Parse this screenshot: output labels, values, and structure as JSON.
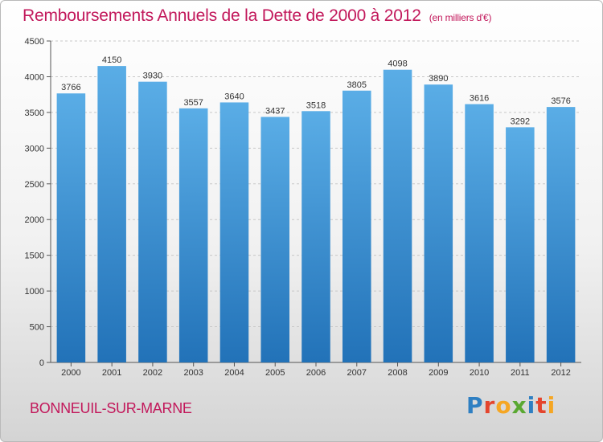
{
  "header": {
    "title": "Remboursements Annuels de la Dette de 2000 à 2012",
    "unit": "(en milliers d'€)"
  },
  "footer": {
    "city": "BONNEUIL-SUR-MARNE",
    "logo_letters": [
      "P",
      "r",
      "o",
      "x",
      "i",
      "t",
      "i"
    ]
  },
  "colors": {
    "title": "#c2185b",
    "bar_top": "#5aade6",
    "bar_bottom": "#2272b8",
    "logo": [
      "#2e7fc2",
      "#e4452d",
      "#f5a623",
      "#5aa832",
      "#2e7fc2",
      "#e4452d",
      "#f5a623"
    ]
  },
  "chart_data": {
    "type": "bar",
    "categories": [
      "2000",
      "2001",
      "2002",
      "2003",
      "2004",
      "2005",
      "2006",
      "2007",
      "2008",
      "2009",
      "2010",
      "2011",
      "2012"
    ],
    "values": [
      3766,
      4150,
      3930,
      3557,
      3640,
      3437,
      3518,
      3805,
      4098,
      3890,
      3616,
      3292,
      3576
    ],
    "ylim": [
      0,
      4500
    ],
    "yticks": [
      0,
      500,
      1000,
      1500,
      2000,
      2500,
      3000,
      3500,
      4000,
      4500
    ],
    "grid": true,
    "data_labels": true
  }
}
